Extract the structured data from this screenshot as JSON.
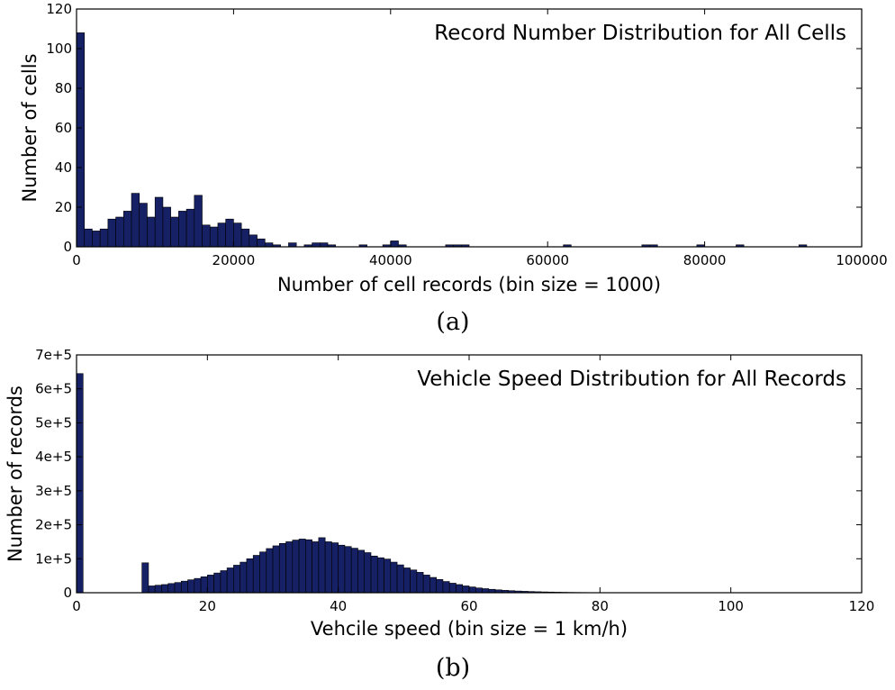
{
  "chart_data": [
    {
      "type": "bar",
      "title": "Record Number Distribution for All Cells",
      "xlabel": "Number of cell records (bin size = 1000)",
      "ylabel": "Number of cells",
      "caption": "(a)",
      "xlim": [
        0,
        100000
      ],
      "ylim": [
        0,
        120
      ],
      "xticks": [
        0,
        20000,
        40000,
        60000,
        80000,
        100000
      ],
      "xtick_labels": [
        "0",
        "20000",
        "40000",
        "60000",
        "80000",
        "100000"
      ],
      "yticks": [
        0,
        20,
        40,
        60,
        80,
        100,
        120
      ],
      "ytick_labels": [
        "0",
        "20",
        "40",
        "60",
        "80",
        "100",
        "120"
      ],
      "bin_width": 1000,
      "legend": "none",
      "grid": false,
      "bar_color": "#162064",
      "x": [
        0,
        1000,
        2000,
        3000,
        4000,
        5000,
        6000,
        7000,
        8000,
        9000,
        10000,
        11000,
        12000,
        13000,
        14000,
        15000,
        16000,
        17000,
        18000,
        19000,
        20000,
        21000,
        22000,
        23000,
        24000,
        25000,
        27000,
        29000,
        30000,
        31000,
        32000,
        36000,
        39000,
        40000,
        41000,
        47000,
        48000,
        49000,
        62000,
        72000,
        73000,
        79000,
        84000,
        92000
      ],
      "values": [
        108,
        9,
        8,
        9,
        14,
        15,
        18,
        27,
        22,
        15,
        25,
        20,
        15,
        18,
        19,
        26,
        11,
        10,
        12,
        14,
        12,
        9,
        6,
        4,
        2,
        1,
        2,
        1,
        2,
        2,
        1,
        1,
        1,
        3,
        1,
        1,
        1,
        1,
        1,
        1,
        1,
        1,
        1,
        1
      ]
    },
    {
      "type": "bar",
      "title": "Vehicle Speed Distribution for All Records",
      "xlabel": "Vehcile speed (bin size = 1 km/h)",
      "ylabel": "Number of records",
      "caption": "(b)",
      "xlim": [
        0,
        120
      ],
      "ylim": [
        0,
        700000
      ],
      "xticks": [
        0,
        20,
        40,
        60,
        80,
        100,
        120
      ],
      "xtick_labels": [
        "0",
        "20",
        "40",
        "60",
        "80",
        "100",
        "120"
      ],
      "yticks": [
        0,
        100000,
        200000,
        300000,
        400000,
        500000,
        600000,
        700000
      ],
      "ytick_labels": [
        "0",
        "1e+5",
        "2e+5",
        "3e+5",
        "4e+5",
        "5e+5",
        "6e+5",
        "7e+5"
      ],
      "bin_width": 1,
      "legend": "none",
      "grid": false,
      "bar_color": "#162064",
      "x": [
        0,
        10,
        11,
        12,
        13,
        14,
        15,
        16,
        17,
        18,
        19,
        20,
        21,
        22,
        23,
        24,
        25,
        26,
        27,
        28,
        29,
        30,
        31,
        32,
        33,
        34,
        35,
        36,
        37,
        38,
        39,
        40,
        41,
        42,
        43,
        44,
        45,
        46,
        47,
        48,
        49,
        50,
        51,
        52,
        53,
        54,
        55,
        56,
        57,
        58,
        59,
        60,
        61,
        62,
        63,
        64,
        65,
        66,
        67,
        68,
        69,
        70,
        71,
        72,
        73,
        74,
        75,
        76,
        77,
        78,
        79,
        80,
        81,
        82
      ],
      "values": [
        645000,
        88000,
        20000,
        22000,
        24000,
        27000,
        30000,
        34000,
        38000,
        42000,
        47000,
        52000,
        58000,
        65000,
        73000,
        81000,
        90000,
        100000,
        110000,
        120000,
        130000,
        138000,
        145000,
        150000,
        155000,
        158000,
        156000,
        150000,
        162000,
        150000,
        147000,
        140000,
        136000,
        131000,
        125000,
        118000,
        108000,
        103000,
        99000,
        90000,
        82000,
        73000,
        67000,
        60000,
        52000,
        45000,
        39000,
        33000,
        28000,
        24000,
        20000,
        17000,
        14000,
        12000,
        10000,
        8500,
        7000,
        6000,
        5000,
        4200,
        3500,
        2900,
        2400,
        2000,
        1600,
        1300,
        1000,
        800,
        650,
        500,
        400,
        300,
        250,
        200
      ]
    }
  ]
}
